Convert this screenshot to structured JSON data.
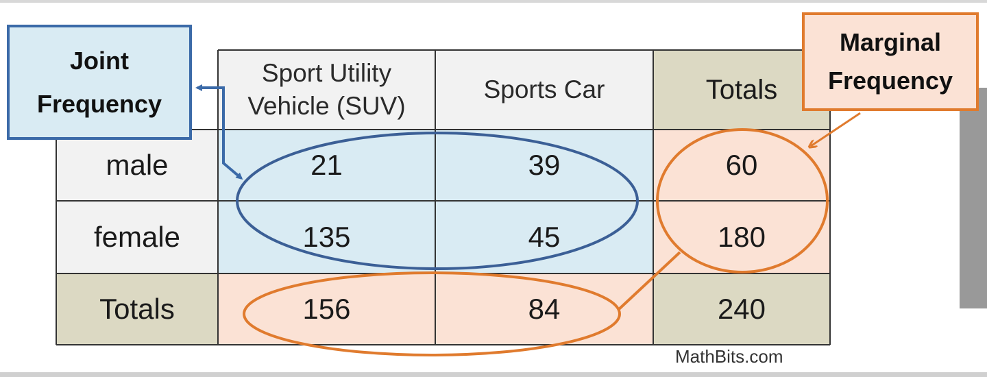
{
  "table": {
    "column_headers": [
      "Sport Utility Vehicle (SUV)",
      "Sports Car",
      "Totals"
    ],
    "column_header_lines": [
      [
        "Sport Utility",
        "Vehicle (SUV)"
      ],
      [
        "Sports Car"
      ],
      [
        "Totals"
      ]
    ],
    "rows": [
      {
        "label": "male",
        "values": [
          "21",
          "39",
          "60"
        ]
      },
      {
        "label": "female",
        "values": [
          "135",
          "45",
          "180"
        ]
      },
      {
        "label": "Totals",
        "values": [
          "156",
          "84",
          "240"
        ]
      }
    ]
  },
  "callouts": {
    "joint": {
      "line1": "Joint",
      "line2": "Frequency"
    },
    "marginal": {
      "line1": "Marginal",
      "line2": "Frequency"
    }
  },
  "credit": "MathBits.com",
  "colors": {
    "joint_fill": "#d9ebf3",
    "joint_border": "#3b6aa8",
    "marginal_fill": "#fbe2d5",
    "marginal_border": "#e07b2e",
    "totals_fill": "#dcd9c3",
    "header_fill": "#f2f2f2",
    "grid": "#333333"
  }
}
